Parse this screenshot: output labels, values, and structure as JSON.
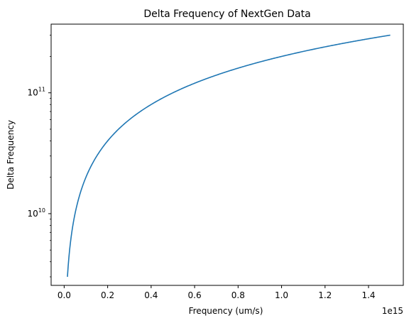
{
  "chart_data": {
    "type": "line",
    "title": "Delta Frequency of NextGen Data",
    "xlabel": "Frequency (um/s)",
    "ylabel": "Delta Frequency",
    "x_offset_label": "1e15",
    "yscale": "log",
    "xlim": [
      -60000000000000.0,
      1560000000000000.0
    ],
    "ylim": [
      2550000000.0,
      370000000000.0
    ],
    "x_ticks": [
      0,
      200000000000000.0,
      400000000000000.0,
      600000000000000.0,
      800000000000000.0,
      1000000000000000.0,
      1200000000000000.0,
      1400000000000000.0
    ],
    "x_tick_labels": [
      "0.0",
      "0.2",
      "0.4",
      "0.6",
      "0.8",
      "1.0",
      "1.2",
      "1.4"
    ],
    "y_ticks": [
      10000000000.0,
      100000000000.0
    ],
    "y_tick_labels": [
      {
        "base": "10",
        "exp": "10"
      },
      {
        "base": "10",
        "exp": "11"
      }
    ],
    "grid": false,
    "series": [
      {
        "color": "#1f77b4",
        "x": [
          15000000000000.0,
          150000000000000.0,
          300000000000000.0,
          450000000000000.0,
          600000000000000.0,
          750000000000000.0,
          900000000000000.0,
          1050000000000000.0,
          1200000000000000.0,
          1350000000000000.0,
          1500000000000000.0
        ],
        "y": [
          3000000000.0,
          30000000000.0,
          60000000000.0,
          90000000000.0,
          120000000000.0,
          150000000000.0,
          180000000000.0,
          210000000000.0,
          240000000000.0,
          270000000000.0,
          300000000000.0
        ]
      }
    ]
  }
}
